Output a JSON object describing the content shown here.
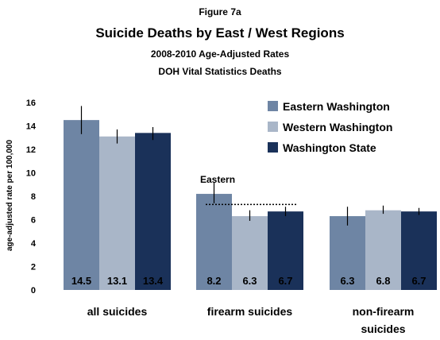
{
  "figure_label": "Figure 7a",
  "chart_data": {
    "type": "bar",
    "title": "Suicide Deaths by East / West Regions",
    "subtitle_lines": [
      "2008-2010 Age-Adjusted Rates",
      "DOH Vital Statistics Deaths"
    ],
    "ylabel": "age-adjusted rate per 100,000",
    "xlabel": "",
    "ylim": [
      0,
      16
    ],
    "yticks": [
      0,
      2,
      4,
      6,
      8,
      10,
      12,
      14,
      16
    ],
    "grid": false,
    "legend_position": "top-right",
    "categories": [
      {
        "lines": [
          "all suicides"
        ]
      },
      {
        "lines": [
          "firearm suicides"
        ]
      },
      {
        "lines": [
          "non-firearm",
          "suicides"
        ]
      }
    ],
    "series": [
      {
        "name": "Eastern Washington",
        "color": "#6e85a4",
        "values": [
          14.5,
          8.2,
          6.3
        ],
        "labels": [
          "14.5",
          "8.2",
          "6.3"
        ],
        "ci": [
          [
            13.3,
            15.7
          ],
          [
            7.4,
            9.2
          ],
          [
            5.5,
            7.1
          ]
        ]
      },
      {
        "name": "Western Washington",
        "color": "#a9b6c8",
        "values": [
          13.1,
          6.3,
          6.8
        ],
        "labels": [
          "13.1",
          "6.3",
          "6.8"
        ],
        "ci": [
          [
            12.5,
            13.7
          ],
          [
            5.9,
            6.8
          ],
          [
            6.5,
            7.2
          ]
        ]
      },
      {
        "name": "Washington State",
        "color": "#1a3159",
        "values": [
          13.4,
          6.7,
          6.7
        ],
        "labels": [
          "13.4",
          "6.7",
          "6.7"
        ],
        "ci": [
          [
            12.8,
            13.9
          ],
          [
            6.3,
            7.1
          ],
          [
            6.4,
            7.0
          ]
        ]
      }
    ],
    "annotations": [
      {
        "text": "Eastern",
        "category_index": 1,
        "reference_value": 7.3
      }
    ]
  }
}
